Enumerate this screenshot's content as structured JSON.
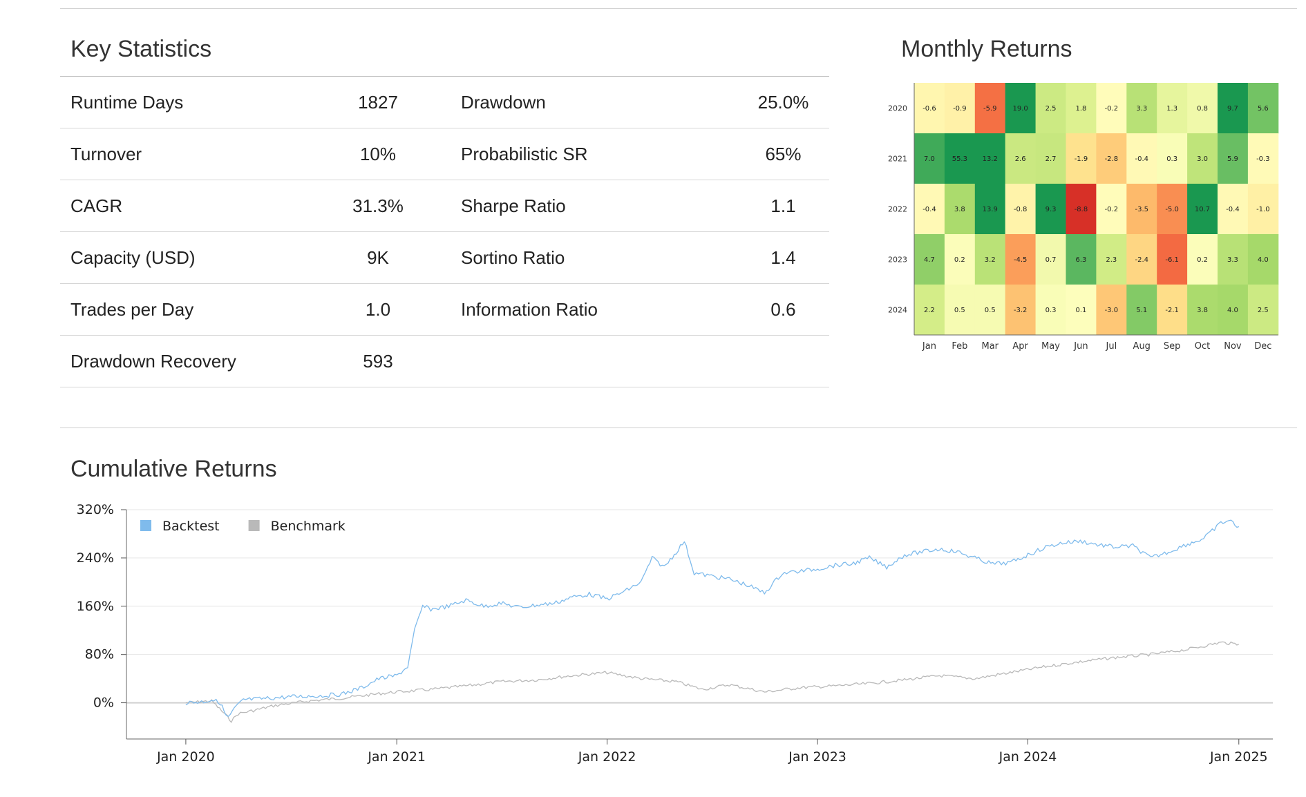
{
  "key_statistics": {
    "title": "Key Statistics",
    "rows": [
      {
        "label1": "Runtime Days",
        "value1": "1827",
        "label2": "Drawdown",
        "value2": "25.0%"
      },
      {
        "label1": "Turnover",
        "value1": "10%",
        "label2": "Probabilistic SR",
        "value2": "65%"
      },
      {
        "label1": "CAGR",
        "value1": "31.3%",
        "label2": "Sharpe Ratio",
        "value2": "1.1"
      },
      {
        "label1": "Capacity (USD)",
        "value1": "9K",
        "label2": "Sortino Ratio",
        "value2": "1.4"
      },
      {
        "label1": "Trades per Day",
        "value1": "1.0",
        "label2": "Information Ratio",
        "value2": "0.6"
      },
      {
        "label1": "Drawdown Recovery",
        "value1": "593",
        "label2": "",
        "value2": ""
      }
    ]
  },
  "monthly_returns": {
    "title": "Monthly Returns"
  },
  "cumulative_returns": {
    "title": "Cumulative Returns"
  },
  "chart_data": [
    {
      "type": "heatmap",
      "title": "Monthly Returns",
      "x_categories": [
        "Jan",
        "Feb",
        "Mar",
        "Apr",
        "May",
        "Jun",
        "Jul",
        "Aug",
        "Sep",
        "Oct",
        "Nov",
        "Dec"
      ],
      "y_categories": [
        "2020",
        "2021",
        "2022",
        "2023",
        "2024"
      ],
      "values": [
        [
          -0.6,
          -0.9,
          -5.9,
          19.0,
          2.5,
          1.8,
          -0.2,
          3.3,
          1.3,
          0.8,
          9.7,
          5.6
        ],
        [
          7.0,
          55.3,
          13.2,
          2.6,
          2.7,
          -1.9,
          -2.8,
          -0.4,
          0.3,
          3.0,
          5.9,
          -0.3
        ],
        [
          -0.4,
          3.8,
          13.9,
          -0.8,
          9.3,
          -8.8,
          -0.2,
          -3.5,
          -5.0,
          10.7,
          -0.4,
          -1.0
        ],
        [
          4.7,
          0.2,
          3.2,
          -4.5,
          0.7,
          6.3,
          2.3,
          -2.4,
          -6.1,
          0.2,
          3.3,
          4.0
        ],
        [
          2.2,
          0.5,
          0.5,
          -3.2,
          0.3,
          0.1,
          -3.0,
          5.1,
          -2.1,
          3.8,
          4.0,
          2.5
        ]
      ],
      "color_scale": "red-yellow-green",
      "color_range": [
        -8,
        8
      ]
    },
    {
      "type": "line",
      "title": "Cumulative Returns",
      "legend_position": "top-left",
      "grid": true,
      "ylim": [
        -60,
        320
      ],
      "y_ticks": [
        0,
        80,
        160,
        240,
        320
      ],
      "y_tick_labels": [
        "0%",
        "80%",
        "160%",
        "240%",
        "320%"
      ],
      "x_range": [
        "2019-09-20",
        "2025-03-01"
      ],
      "x_ticks": [
        "2020-01-01",
        "2021-01-01",
        "2022-01-01",
        "2023-01-01",
        "2024-01-01",
        "2025-01-01"
      ],
      "x_tick_labels": [
        "Jan 2020",
        "Jan 2021",
        "Jan 2022",
        "Jan 2023",
        "Jan 2024",
        "Jan 2025"
      ],
      "series": [
        {
          "name": "Backtest",
          "color": "#7fbbec",
          "points": [
            [
              "2020-01-01",
              0
            ],
            [
              "2020-02-01",
              2
            ],
            [
              "2020-02-15",
              5
            ],
            [
              "2020-03-01",
              0
            ],
            [
              "2020-03-10",
              -20
            ],
            [
              "2020-03-15",
              -25
            ],
            [
              "2020-03-25",
              -10
            ],
            [
              "2020-04-10",
              5
            ],
            [
              "2020-05-01",
              6
            ],
            [
              "2020-06-01",
              8
            ],
            [
              "2020-07-01",
              10
            ],
            [
              "2020-08-01",
              11
            ],
            [
              "2020-09-01",
              12
            ],
            [
              "2020-10-01",
              15
            ],
            [
              "2020-11-01",
              25
            ],
            [
              "2020-12-01",
              40
            ],
            [
              "2021-01-01",
              45
            ],
            [
              "2021-01-20",
              60
            ],
            [
              "2021-02-01",
              120
            ],
            [
              "2021-02-15",
              160
            ],
            [
              "2021-03-01",
              155
            ],
            [
              "2021-04-01",
              160
            ],
            [
              "2021-05-01",
              170
            ],
            [
              "2021-06-01",
              160
            ],
            [
              "2021-07-01",
              165
            ],
            [
              "2021-08-01",
              158
            ],
            [
              "2021-09-01",
              162
            ],
            [
              "2021-10-01",
              165
            ],
            [
              "2021-11-01",
              175
            ],
            [
              "2021-12-01",
              180
            ],
            [
              "2022-01-01",
              172
            ],
            [
              "2022-02-01",
              185
            ],
            [
              "2022-03-01",
              200
            ],
            [
              "2022-03-20",
              240
            ],
            [
              "2022-04-10",
              225
            ],
            [
              "2022-05-01",
              250
            ],
            [
              "2022-05-15",
              268
            ],
            [
              "2022-06-01",
              215
            ],
            [
              "2022-07-01",
              210
            ],
            [
              "2022-08-01",
              205
            ],
            [
              "2022-09-01",
              195
            ],
            [
              "2022-10-01",
              182
            ],
            [
              "2022-11-01",
              215
            ],
            [
              "2022-12-01",
              218
            ],
            [
              "2023-01-01",
              222
            ],
            [
              "2023-02-01",
              228
            ],
            [
              "2023-03-01",
              230
            ],
            [
              "2023-04-01",
              240
            ],
            [
              "2023-05-01",
              225
            ],
            [
              "2023-06-01",
              245
            ],
            [
              "2023-07-01",
              250
            ],
            [
              "2023-08-01",
              255
            ],
            [
              "2023-09-01",
              250
            ],
            [
              "2023-10-01",
              240
            ],
            [
              "2023-11-01",
              230
            ],
            [
              "2023-12-01",
              232
            ],
            [
              "2024-01-01",
              245
            ],
            [
              "2024-02-01",
              258
            ],
            [
              "2024-03-01",
              265
            ],
            [
              "2024-04-01",
              268
            ],
            [
              "2024-05-01",
              262
            ],
            [
              "2024-06-01",
              258
            ],
            [
              "2024-07-01",
              260
            ],
            [
              "2024-08-01",
              240
            ],
            [
              "2024-09-01",
              250
            ],
            [
              "2024-10-01",
              262
            ],
            [
              "2024-11-01",
              272
            ],
            [
              "2024-12-01",
              298
            ],
            [
              "2024-12-15",
              302
            ],
            [
              "2025-01-01",
              292
            ]
          ]
        },
        {
          "name": "Benchmark",
          "color": "#b9b9b9",
          "points": [
            [
              "2020-01-01",
              0
            ],
            [
              "2020-02-15",
              3
            ],
            [
              "2020-03-10",
              -20
            ],
            [
              "2020-03-20",
              -30
            ],
            [
              "2020-04-01",
              -18
            ],
            [
              "2020-05-01",
              -12
            ],
            [
              "2020-06-01",
              -5
            ],
            [
              "2020-08-01",
              3
            ],
            [
              "2020-10-01",
              8
            ],
            [
              "2020-12-01",
              15
            ],
            [
              "2021-01-01",
              18
            ],
            [
              "2021-03-01",
              22
            ],
            [
              "2021-05-01",
              28
            ],
            [
              "2021-07-01",
              35
            ],
            [
              "2021-09-01",
              38
            ],
            [
              "2021-11-01",
              45
            ],
            [
              "2022-01-01",
              50
            ],
            [
              "2022-03-01",
              40
            ],
            [
              "2022-05-01",
              35
            ],
            [
              "2022-06-15",
              22
            ],
            [
              "2022-08-01",
              30
            ],
            [
              "2022-10-01",
              18
            ],
            [
              "2022-12-01",
              25
            ],
            [
              "2023-02-01",
              28
            ],
            [
              "2023-04-01",
              32
            ],
            [
              "2023-06-01",
              38
            ],
            [
              "2023-08-01",
              45
            ],
            [
              "2023-10-01",
              40
            ],
            [
              "2023-12-01",
              50
            ],
            [
              "2024-02-01",
              60
            ],
            [
              "2024-04-01",
              68
            ],
            [
              "2024-06-01",
              75
            ],
            [
              "2024-08-01",
              80
            ],
            [
              "2024-10-01",
              88
            ],
            [
              "2024-12-01",
              100
            ],
            [
              "2025-01-01",
              97
            ]
          ]
        }
      ]
    }
  ]
}
